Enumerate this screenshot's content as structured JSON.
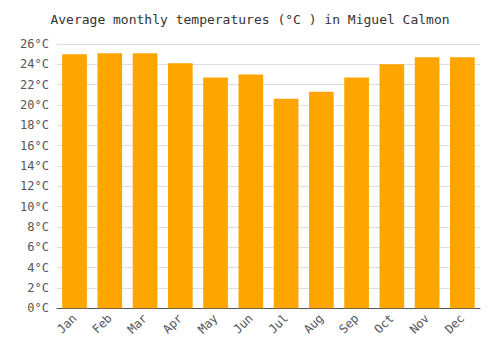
{
  "chart_data": {
    "type": "bar",
    "title": "Average monthly temperatures (°C ) in Miguel Calmon",
    "categories": [
      "Jan",
      "Feb",
      "Mar",
      "Apr",
      "May",
      "Jun",
      "Jul",
      "Aug",
      "Sep",
      "Oct",
      "Nov",
      "Dec"
    ],
    "values": [
      25.0,
      25.1,
      25.1,
      24.1,
      22.7,
      23.0,
      20.6,
      21.3,
      22.7,
      24.0,
      24.7,
      24.7
    ],
    "color": "#FFA500",
    "ylim": [
      0,
      26
    ],
    "yticks": [
      {
        "value": 0,
        "label": "0°C"
      },
      {
        "value": 2,
        "label": "2°C"
      },
      {
        "value": 4,
        "label": "4°C"
      },
      {
        "value": 6,
        "label": "6°C"
      },
      {
        "value": 8,
        "label": "8°C"
      },
      {
        "value": 10,
        "label": "10°C"
      },
      {
        "value": 12,
        "label": "12°C"
      },
      {
        "value": 14,
        "label": "14°C"
      },
      {
        "value": 16,
        "label": "16°C"
      },
      {
        "value": 18,
        "label": "18°C"
      },
      {
        "value": 20,
        "label": "20°C"
      },
      {
        "value": 22,
        "label": "22°C"
      },
      {
        "value": 24,
        "label": "24°C"
      },
      {
        "value": 26,
        "label": "26°C"
      }
    ],
    "grid": true
  }
}
